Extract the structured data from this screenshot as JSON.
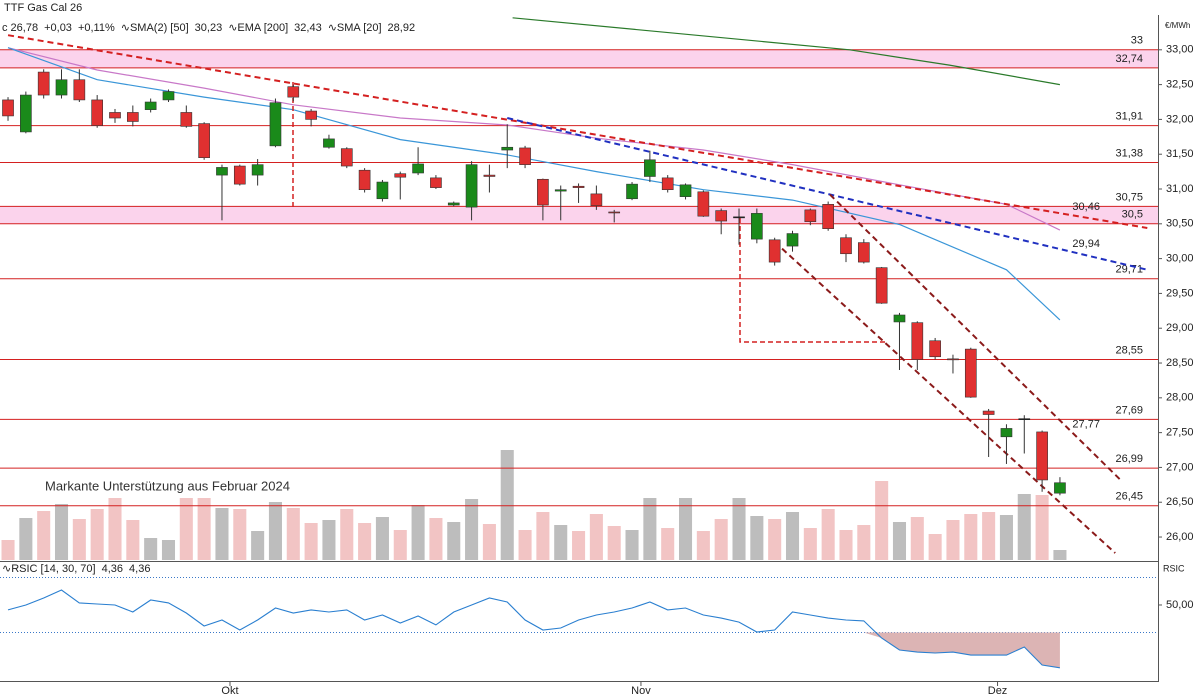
{
  "chart_data": {
    "type": "candlestick",
    "title": "TTF Gas Cal 26",
    "unit": "€/MWh",
    "legend": [
      {
        "text": "c 26,78",
        "color": "#222222"
      },
      {
        "text": "+0,03",
        "color": "#1a8a1a"
      },
      {
        "text": "+0,11%",
        "color": "#1a8a1a"
      },
      {
        "text": "∿SMA(2) [50]",
        "color": "#222222"
      },
      {
        "text": "30,23",
        "color": "#c060c0"
      },
      {
        "text": "∿EMA [200]",
        "color": "#222222"
      },
      {
        "text": "32,43",
        "color": "#1a7a1a"
      },
      {
        "text": "∿SMA [20]",
        "color": "#222222"
      },
      {
        "text": "28,92",
        "color": "#2a8ad0"
      }
    ],
    "annotation": "Markante Unterstützung aus Februar 2024",
    "xlim": [
      -0.45,
      64.5
    ],
    "xticks": [
      {
        "value": 12.45,
        "label": "Okt"
      },
      {
        "value": 35.5,
        "label": "Nov"
      },
      {
        "value": 55.5,
        "label": "Dez"
      }
    ],
    "ylim": [
      25.67,
      33.5
    ],
    "yticks": [
      {
        "value": 26,
        "label": "26,00"
      },
      {
        "value": 26.5,
        "label": "26,50"
      },
      {
        "value": 27,
        "label": "27,00"
      },
      {
        "value": 27.5,
        "label": "27,50"
      },
      {
        "value": 28,
        "label": "28,00"
      },
      {
        "value": 28.5,
        "label": "28,50"
      },
      {
        "value": 29,
        "label": "29,00"
      },
      {
        "value": 29.5,
        "label": "29,50"
      },
      {
        "value": 30,
        "label": "30,00"
      },
      {
        "value": 30.5,
        "label": "30,50"
      },
      {
        "value": 31,
        "label": "31,00"
      },
      {
        "value": 31.5,
        "label": "31,50"
      },
      {
        "value": 32,
        "label": "32,00"
      },
      {
        "value": 32.5,
        "label": "32,50"
      },
      {
        "value": 33,
        "label": "33,00"
      }
    ],
    "up_color": "#1a8a1a",
    "down_color": "#e03030",
    "open": [
      32.28,
      31.82,
      32.68,
      32.35,
      32.57,
      32.28,
      32.1,
      32.1,
      32.14,
      32.28,
      32.1,
      31.94,
      31.2,
      31.33,
      31.2,
      31.62,
      32.47,
      32.12,
      31.6,
      31.58,
      31.27,
      30.86,
      31.22,
      31.23,
      31.16,
      30.77,
      30.74,
      31.2,
      31.56,
      31.59,
      31.14,
      30.97,
      31.04,
      30.93,
      30.67,
      30.86,
      31.18,
      31.16,
      30.89,
      30.96,
      30.69,
      30.6,
      30.28,
      30.27,
      30.18,
      30.7,
      30.78,
      30.3,
      30.23,
      29.87,
      29.09,
      29.08,
      28.82,
      28.56,
      28.7,
      27.81,
      27.44,
      27.7,
      27.51,
      26.63
    ],
    "high": [
      32.32,
      32.4,
      32.72,
      32.72,
      32.72,
      32.35,
      32.15,
      32.2,
      32.3,
      32.43,
      32.2,
      31.96,
      31.35,
      31.35,
      31.43,
      32.3,
      32.5,
      32.15,
      31.78,
      31.6,
      31.3,
      31.13,
      31.25,
      31.6,
      31.2,
      30.82,
      31.4,
      31.35,
      31.93,
      31.62,
      31.15,
      31.05,
      31.08,
      31.05,
      30.7,
      31.1,
      31.55,
      31.2,
      31.08,
      30.98,
      30.72,
      30.72,
      30.72,
      30.3,
      30.4,
      30.72,
      30.82,
      30.35,
      30.28,
      29.88,
      29.22,
      29.1,
      28.86,
      28.62,
      28.72,
      27.84,
      27.62,
      27.75,
      27.53,
      26.86
    ],
    "low": [
      31.98,
      31.8,
      32.3,
      32.3,
      32.25,
      31.88,
      31.95,
      31.9,
      32.1,
      32.25,
      31.88,
      31.42,
      30.55,
      31.05,
      31.05,
      31.6,
      32.26,
      31.9,
      31.58,
      31.3,
      30.95,
      30.82,
      30.85,
      31.2,
      31.0,
      30.75,
      30.55,
      30.95,
      31.3,
      31.3,
      30.55,
      30.55,
      30.8,
      30.7,
      30.52,
      30.84,
      31.1,
      30.95,
      30.85,
      30.6,
      30.35,
      30.2,
      30.22,
      29.9,
      30.1,
      30.48,
      30.4,
      29.95,
      29.93,
      29.35,
      28.4,
      28.4,
      28.55,
      28.35,
      28.0,
      27.15,
      27.05,
      27.2,
      26.65,
      26.6
    ],
    "close": [
      32.05,
      32.35,
      32.35,
      32.57,
      32.28,
      31.91,
      32.02,
      31.97,
      32.25,
      32.4,
      31.9,
      31.45,
      31.31,
      31.07,
      31.35,
      32.24,
      32.32,
      32.0,
      31.72,
      31.33,
      30.99,
      31.1,
      31.17,
      31.36,
      31.02,
      30.8,
      31.35,
      31.18,
      31.6,
      31.35,
      30.77,
      30.99,
      31.02,
      30.76,
      30.66,
      31.07,
      31.42,
      30.99,
      31.06,
      30.61,
      30.54,
      30.6,
      30.65,
      29.95,
      30.36,
      30.53,
      30.43,
      30.07,
      29.95,
      29.36,
      29.19,
      28.55,
      28.59,
      28.55,
      28.01,
      27.76,
      27.56,
      27.7,
      26.82,
      26.78
    ],
    "volume": [
      20,
      42,
      49,
      56,
      41,
      51,
      62,
      40,
      22,
      20,
      62,
      62,
      52,
      51,
      29,
      58,
      52,
      37,
      40,
      51,
      37,
      43,
      30,
      55,
      42,
      38,
      61,
      36,
      110,
      30,
      48,
      35,
      29,
      46,
      34,
      30,
      62,
      32,
      62,
      29,
      41,
      62,
      44,
      41,
      48,
      32,
      51,
      30,
      35,
      79,
      38,
      43,
      26,
      40,
      46,
      48,
      45,
      66,
      65,
      10
    ],
    "volume_lim": [
      0,
      545
    ],
    "volume_up_color": "#bdbdbd",
    "volume_down_color": "#f2c4c4",
    "series": [
      {
        "name": "SMA(2) [50]",
        "color": "#c878c8",
        "x": [
          0,
          5,
          11,
          16,
          22,
          28,
          33,
          39,
          44,
          50,
          56,
          59
        ],
        "values": [
          33.03,
          32.71,
          32.45,
          32.21,
          32.02,
          31.92,
          31.73,
          31.56,
          31.35,
          31.06,
          30.78,
          30.41
        ]
      },
      {
        "name": "EMA [200]",
        "color": "#2a7a2a",
        "x": [
          28.3,
          47.2,
          52.8,
          59
        ],
        "values": [
          33.46,
          33.0,
          32.78,
          32.5
        ]
      },
      {
        "name": "SMA [20]",
        "color": "#3a96d8",
        "x": [
          0,
          5,
          11,
          16,
          22,
          28,
          33,
          39,
          44,
          50,
          56,
          59
        ],
        "values": [
          33.03,
          32.57,
          32.32,
          32.14,
          31.71,
          31.49,
          31.25,
          30.99,
          30.84,
          30.49,
          29.84,
          29.12
        ]
      }
    ],
    "levels": [
      {
        "value": 33,
        "label": 33
      },
      {
        "value": 32.74,
        "label": "32,74"
      },
      {
        "value": 31.91,
        "label": "31,91"
      },
      {
        "value": 31.38,
        "label": "31,38"
      },
      {
        "value": 30.75,
        "label": "30,75"
      },
      {
        "value": 30.5,
        "label": "30,5"
      },
      {
        "value": 29.71,
        "label": "29,71"
      },
      {
        "value": 28.55,
        "label": "28,55"
      },
      {
        "value": 27.69,
        "label": "27,69"
      },
      {
        "value": 26.99,
        "label": "26,99"
      },
      {
        "value": 26.45,
        "label": "26,45"
      }
    ],
    "level_color": "#d42020",
    "zones": [
      [
        32.74,
        33
      ],
      [
        30.5,
        30.75
      ]
    ],
    "zone_color": "#fbd3ec",
    "trendlines": [
      {
        "x": [
          0,
          63.9
        ],
        "values": [
          33.21,
          30.44
        ],
        "color": "#d42020",
        "label": "30,46",
        "label_x": 59.7
      },
      {
        "x": [
          28,
          63.9
        ],
        "values": [
          32.02,
          29.84
        ],
        "color": "#2030c0",
        "label": "29,94",
        "label_x": 59.7
      },
      {
        "x": [
          46.1,
          62.4
        ],
        "values": [
          30.92,
          26.82
        ],
        "color": "#8b1a1a",
        "label": "27,77",
        "label_x": 59.7
      },
      {
        "x": [
          43,
          62.1
        ],
        "values": [
          30.24,
          25.77
        ],
        "color": "#8b1a1a"
      }
    ],
    "rsi": {
      "label": "RSIC",
      "legend": [
        {
          "text": "∿RSIC [14, 30, 70]",
          "color": "#222222"
        },
        {
          "text": "4,36",
          "color": "#2a7fd0"
        },
        {
          "text": "4,36",
          "color": "#c02020"
        }
      ],
      "color": "#2a7fd0",
      "fill_color": "#dcb4b4",
      "ylim": [
        -4.5,
        80.5
      ],
      "yticks": [
        {
          "value": 50,
          "label": "50,00"
        }
      ],
      "bands": [
        30,
        70
      ],
      "values": [
        46.4,
        50,
        55.1,
        60.9,
        51.5,
        50.7,
        50,
        44.9,
        53.6,
        51.5,
        44.2,
        34.7,
        39.1,
        31.8,
        39.1,
        47.8,
        44.2,
        46.4,
        44.9,
        46.4,
        39.1,
        42.7,
        36.9,
        42,
        35.5,
        44.9,
        50,
        55.1,
        52.2,
        39.1,
        31.8,
        33.3,
        39.1,
        42.7,
        44.9,
        47.8,
        52.2,
        46.4,
        47.8,
        42.7,
        40.5,
        37.6,
        30.4,
        31.8,
        44.9,
        42.7,
        40.5,
        39.1,
        38.4,
        26,
        17.3,
        15.8,
        15.1,
        15.8,
        13.6,
        13.6,
        13.6,
        19.5,
        6.4,
        4.36
      ]
    }
  }
}
